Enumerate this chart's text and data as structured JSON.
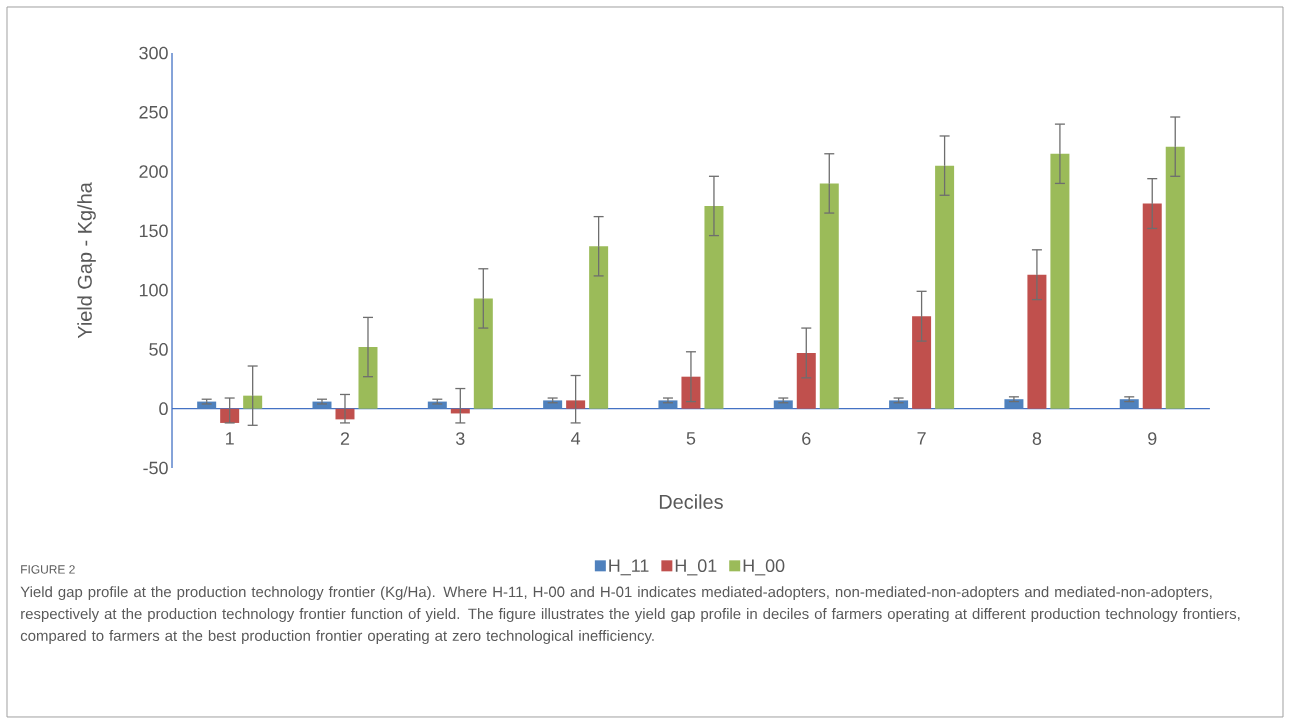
{
  "chart_data": {
    "type": "bar",
    "xlabel": "Deciles",
    "ylabel": "Yield Gap - Kg/ha",
    "categories": [
      "1",
      "2",
      "3",
      "4",
      "5",
      "6",
      "7",
      "8",
      "9"
    ],
    "series": [
      {
        "name": "H_11",
        "color": "#4f81bd",
        "values": [
          6,
          6,
          6,
          7,
          7,
          7,
          7,
          8,
          8
        ],
        "errors": [
          2,
          2,
          2,
          2,
          2,
          2,
          2,
          2,
          2
        ]
      },
      {
        "name": "H_01",
        "color": "#c0504d",
        "values": [
          -12,
          -9,
          -4,
          7,
          27,
          47,
          78,
          113,
          173
        ],
        "errors": [
          [
            -12,
            9
          ],
          [
            -12,
            12
          ],
          [
            -12,
            17
          ],
          [
            -12,
            28
          ],
          21,
          21,
          21,
          21,
          21
        ]
      },
      {
        "name": "H_00",
        "color": "#9bbb59",
        "values": [
          11,
          52,
          93,
          137,
          171,
          190,
          205,
          215,
          221
        ],
        "errors": [
          25,
          25,
          25,
          25,
          25,
          25,
          25,
          25,
          25
        ]
      }
    ],
    "ylim": [
      -50,
      300
    ],
    "yticks": [
      -50,
      0,
      50,
      100,
      150,
      200,
      250,
      300
    ],
    "legend": "bottom",
    "annotations": [
      "FIGURE 2",
      "Yield gap profile at the production technology frontier (Kg/Ha). Where H-11, H-00 and H-01 indicates mediated-adopters, non-mediated-non-adopters and mediated-non-adopters, respectively at the production technology frontier function of yield. The figure illustrates the yield gap profile in deciles of farmers operating at different production technology frontiers, compared to farmers at the best production frontier operating at zero technological inefficiency."
    ]
  }
}
